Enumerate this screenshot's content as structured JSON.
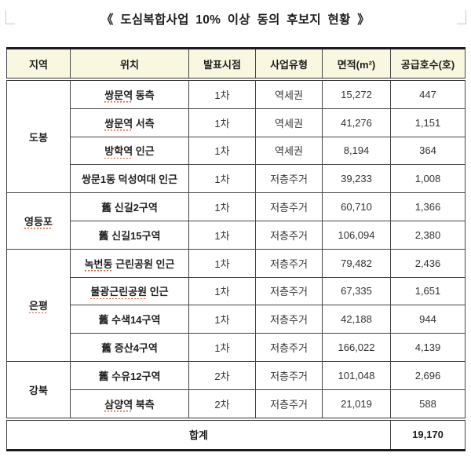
{
  "title": "《 도심복합사업 10% 이상 동의 후보지 현황 》",
  "colors": {
    "header_bg": "#faf7e1",
    "outer_border": "#1c1c1c",
    "inner_border": "#454545",
    "squiggle": "#dd5f2b"
  },
  "table": {
    "headers": [
      "지역",
      "위치",
      "발표시점",
      "사업유형",
      "면적(m²)",
      "공급호수(호)"
    ],
    "groups": [
      {
        "region": "도봉",
        "region_squiggle": false,
        "rows": [
          {
            "location": [
              {
                "t": "쌍문역",
                "sq": true
              },
              {
                "t": " 동측",
                "sq": false
              }
            ],
            "phase": "1차",
            "type": "역세권",
            "area": "15,272",
            "units": "447"
          },
          {
            "location": [
              {
                "t": "쌍문역",
                "sq": true
              },
              {
                "t": " 서측",
                "sq": false
              }
            ],
            "phase": "1차",
            "type": "역세권",
            "area": "41,276",
            "units": "1,151"
          },
          {
            "location": [
              {
                "t": "방학역",
                "sq": true
              },
              {
                "t": " 인근",
                "sq": false
              }
            ],
            "phase": "1차",
            "type": "역세권",
            "area": "8,194",
            "units": "364"
          },
          {
            "location": [
              {
                "t": "쌍문1동 덕성여대 인근",
                "sq": false
              }
            ],
            "phase": "1차",
            "type": "저층주거",
            "area": "39,233",
            "units": "1,008"
          }
        ]
      },
      {
        "region": "영등포",
        "region_squiggle": true,
        "rows": [
          {
            "location": [
              {
                "t": "舊 신길2구역",
                "sq": false
              }
            ],
            "phase": "1차",
            "type": "저층주거",
            "area": "60,710",
            "units": "1,366"
          },
          {
            "location": [
              {
                "t": "舊 신길15구역",
                "sq": false
              }
            ],
            "phase": "1차",
            "type": "저층주거",
            "area": "106,094",
            "units": "2,380"
          }
        ]
      },
      {
        "region": "은평",
        "region_squiggle": true,
        "rows": [
          {
            "location": [
              {
                "t": "녹번동",
                "sq": true
              },
              {
                "t": " 근린공원 인근",
                "sq": false
              }
            ],
            "phase": "1차",
            "type": "저층주거",
            "area": "79,482",
            "units": "2,436"
          },
          {
            "location": [
              {
                "t": "불광근린공원",
                "sq": true
              },
              {
                "t": " 인근",
                "sq": false
              }
            ],
            "phase": "1차",
            "type": "저층주거",
            "area": "67,335",
            "units": "1,651"
          },
          {
            "location": [
              {
                "t": "舊 수색14구역",
                "sq": false
              }
            ],
            "phase": "1차",
            "type": "저층주거",
            "area": "42,188",
            "units": "944"
          },
          {
            "location": [
              {
                "t": "舊 증산4구역",
                "sq": false
              }
            ],
            "phase": "1차",
            "type": "저층주거",
            "area": "166,022",
            "units": "4,139"
          }
        ]
      },
      {
        "region": "강북",
        "region_squiggle": false,
        "rows": [
          {
            "location": [
              {
                "t": "舊 수유12구역",
                "sq": false
              }
            ],
            "phase": "2차",
            "type": "저층주거",
            "area": "101,048",
            "units": "2,696"
          },
          {
            "location": [
              {
                "t": "삼양역",
                "sq": true
              },
              {
                "t": " 북측",
                "sq": false
              }
            ],
            "phase": "2차",
            "type": "저층주거",
            "area": "21,019",
            "units": "588"
          }
        ]
      }
    ],
    "footer": {
      "label": "합계",
      "total": "19,170"
    }
  }
}
